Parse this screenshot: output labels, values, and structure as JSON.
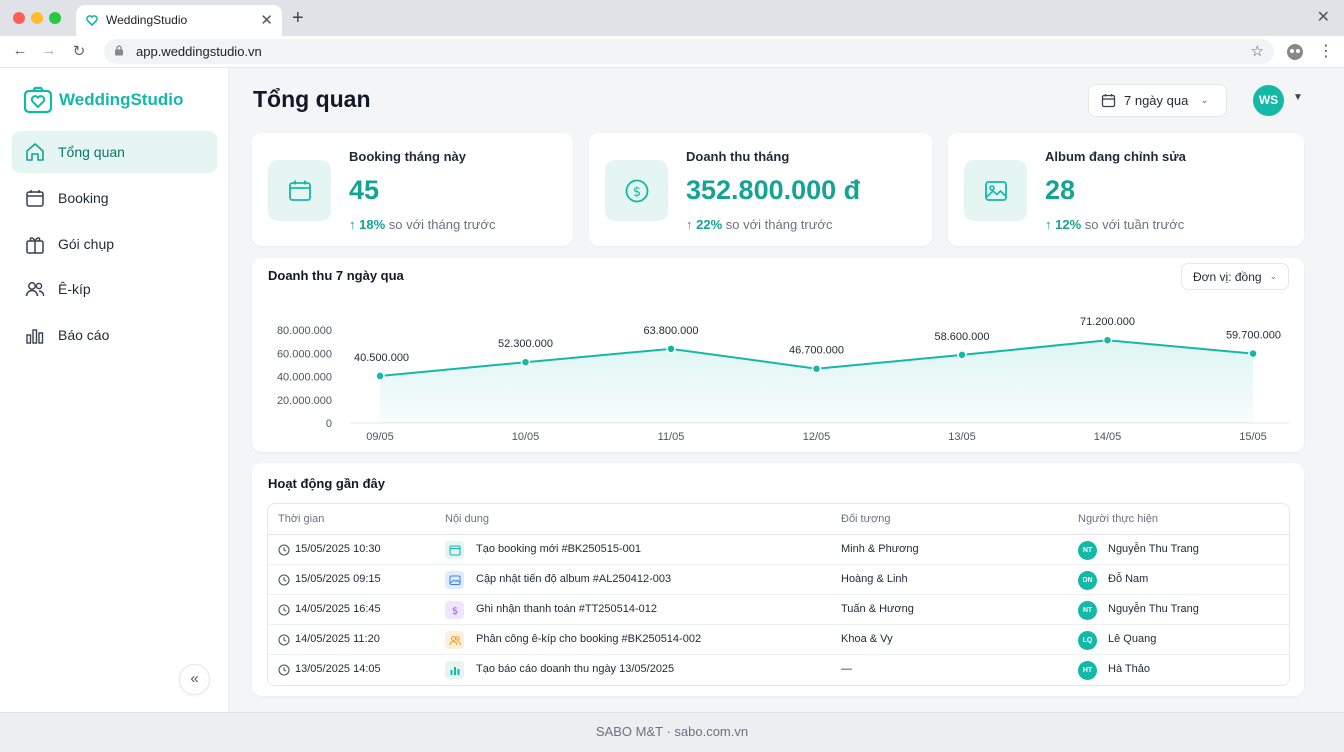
{
  "browser": {
    "tab_title": "WeddingStudio",
    "tab_close": "✕",
    "new_tab": "+",
    "window_close": "✕",
    "back": "←",
    "forward": "→",
    "reload": "↻",
    "url": "app.weddingstudio.vn",
    "star": "☆",
    "menu": "⋮"
  },
  "sidebar": {
    "logo_text": "WeddingStudio",
    "items": [
      {
        "label": "Tổng quan",
        "icon": "home-icon",
        "active": true
      },
      {
        "label": "Booking",
        "icon": "calendar-icon"
      },
      {
        "label": "Gói chụp",
        "icon": "gift-icon"
      },
      {
        "label": "Ê-kíp",
        "icon": "users-icon"
      },
      {
        "label": "Báo cáo",
        "icon": "bar-chart-icon"
      }
    ],
    "collapse": "«"
  },
  "header": {
    "title": "Tổng quan",
    "range_label": "7 ngày qua",
    "avatar": "WS"
  },
  "stats": [
    {
      "label": "Booking tháng này",
      "value": "45",
      "delta_arrow": "↑",
      "delta_pct": "18%",
      "delta_text": "so với tháng trước",
      "icon": "calendar-icon"
    },
    {
      "label": "Doanh thu tháng",
      "value": "352.800.000 đ",
      "delta_arrow": "↑",
      "delta_pct": "22%",
      "delta_text": "so với tháng trước",
      "icon": "dollar-icon"
    },
    {
      "label": "Album đang chỉnh sửa",
      "value": "28",
      "delta_arrow": "↑",
      "delta_pct": "12%",
      "delta_text": "so với tuần trước",
      "icon": "image-icon"
    }
  ],
  "chart": {
    "title": "Doanh thu 7 ngày qua",
    "unit_label": "Đơn vị: đồng"
  },
  "chart_data": {
    "type": "area",
    "categories": [
      "09/05",
      "10/05",
      "11/05",
      "12/05",
      "13/05",
      "14/05",
      "15/05"
    ],
    "values": [
      40500000,
      52300000,
      63800000,
      46700000,
      58600000,
      71200000,
      59700000
    ],
    "value_labels": [
      "40.500.000",
      "52.300.000",
      "63.800.000",
      "46.700.000",
      "58.600.000",
      "71.200.000",
      "59.700.000"
    ],
    "y_ticks": [
      0,
      20000000,
      40000000,
      60000000,
      80000000
    ],
    "y_tick_labels": [
      "0",
      "20.000.000",
      "40.000.000",
      "60.000.000",
      "80.000.000"
    ],
    "ylim": [
      0,
      80000000
    ],
    "line_color": "#14b8a6",
    "grid": false
  },
  "activity": {
    "title": "Hoạt động gần đây",
    "columns": [
      "Thời gian",
      "Nội dung",
      "Đối tượng",
      "Người thực hiện"
    ],
    "rows": [
      {
        "time": "15/05/2025 10:30",
        "content": "Tạo booking mới #BK250515-001",
        "target": "Minh & Phương",
        "user": "Nguyễn Thu Trang",
        "initials": "NT",
        "icon": "calendar-icon",
        "icon_bg": "#e4f5f2",
        "icon_color": "#14b8a6"
      },
      {
        "time": "15/05/2025 09:15",
        "content": "Cập nhật tiến độ album #AL250412-003",
        "target": "Hoàng & Linh",
        "user": "Đỗ Nam",
        "initials": "DN",
        "icon": "image-icon",
        "icon_bg": "#e0edff",
        "icon_color": "#3b82f6"
      },
      {
        "time": "14/05/2025 16:45",
        "content": "Ghi nhận thanh toán #TT250514-012",
        "target": "Tuấn & Hương",
        "user": "Nguyễn Thu Trang",
        "initials": "NT",
        "icon": "dollar-icon",
        "icon_bg": "#efe7fd",
        "icon_color": "#8b5cf6"
      },
      {
        "time": "14/05/2025 11:20",
        "content": "Phân công ê-kíp cho booking #BK250514-002",
        "target": "Khoa & Vy",
        "user": "Lê Quang",
        "initials": "LQ",
        "icon": "users-icon",
        "icon_bg": "#fdeee0",
        "icon_color": "#f59e0b"
      },
      {
        "time": "13/05/2025 14:05",
        "content": "Tạo báo cáo doanh thu ngày 13/05/2025",
        "target": "—",
        "user": "Hà Thảo",
        "initials": "HT",
        "icon": "bar-chart-icon",
        "icon_bg": "#e4f5f2",
        "icon_color": "#14b8a6"
      }
    ]
  },
  "footer": "SABO M&T · sabo.com.vn"
}
